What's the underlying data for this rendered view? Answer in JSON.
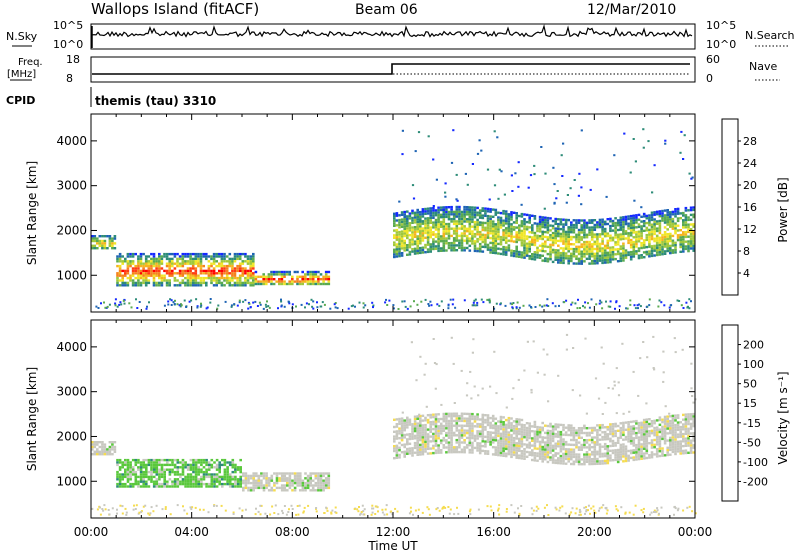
{
  "header": {
    "station": "Wallops Island (fitACF)",
    "beam": "Beam 06",
    "date": "12/Mar/2010"
  },
  "top_panels": {
    "nsky_label": "N.Sky",
    "nsky_ticks": [
      "10^5",
      "10^0"
    ],
    "nsearch_label": "N.Search",
    "nsearch_ticks": [
      "10^5",
      "10^0"
    ],
    "freq_label": "Freq.",
    "freq_unit": "[MHz]",
    "freq_ticks": [
      "18",
      "8"
    ],
    "nave_label": "Nave",
    "nave_ticks": [
      "60",
      "0"
    ],
    "cpid_label": "CPID",
    "cpid_value": "themis (tau) 3310"
  },
  "chart_data": [
    {
      "type": "heatmap",
      "name": "power",
      "ylabel": "Slant Range [km]",
      "ylim": [
        180,
        4600
      ],
      "yticks": [
        1000,
        2000,
        3000,
        4000
      ],
      "xlim": [
        0,
        24
      ],
      "colorbar": {
        "label": "Power [dB]",
        "ticks": [
          "28",
          "24",
          "20",
          "16",
          "12",
          "8",
          "4"
        ],
        "colors": [
          "#1428ff",
          "#1e64b4",
          "#2d8c78",
          "#5aaa50",
          "#a0c83c",
          "#f0e628",
          "#f5b41e",
          "#f5821e",
          "#ff3c14",
          "#ff0000"
        ]
      },
      "features": [
        {
          "t0": 0.0,
          "t1": 1.0,
          "r0": 1600,
          "r1": 1900,
          "level": "mid"
        },
        {
          "t0": 1.0,
          "t1": 6.5,
          "r0": 800,
          "r1": 1500,
          "level": "high"
        },
        {
          "t0": 6.5,
          "t1": 9.5,
          "r0": 800,
          "r1": 1100,
          "level": "high"
        },
        {
          "t0": 12.0,
          "t1": 24.0,
          "r0": 1400,
          "r1": 2400,
          "level": "mid"
        }
      ]
    },
    {
      "type": "heatmap",
      "name": "velocity",
      "ylabel": "Slant Range [km]",
      "xlabel": "Time UT",
      "ylim": [
        180,
        4600
      ],
      "yticks": [
        1000,
        2000,
        3000,
        4000
      ],
      "xlim": [
        0,
        24
      ],
      "xticks": [
        "00:00",
        "04:00",
        "08:00",
        "12:00",
        "16:00",
        "20:00",
        "00:00"
      ],
      "colorbar": {
        "label": "Velocity [m s⁻¹]",
        "ticks": [
          "200",
          "100",
          "50",
          "15",
          "-15",
          "-50",
          "-100",
          "-200"
        ],
        "colors": [
          "#1e1eb4",
          "#1e3cc8",
          "#2d8c78",
          "#5ac83c",
          "#c8c8c0",
          "#f5dc50",
          "#f5a028",
          "#ff6414",
          "#ff0000"
        ]
      },
      "features": [
        {
          "t0": 0.0,
          "t1": 1.0,
          "r0": 1600,
          "r1": 1900,
          "level": "ground"
        },
        {
          "t0": 1.0,
          "t1": 6.0,
          "r0": 900,
          "r1": 1500,
          "level": "positive"
        },
        {
          "t0": 6.0,
          "t1": 9.5,
          "r0": 800,
          "r1": 1200,
          "level": "ground"
        },
        {
          "t0": 12.0,
          "t1": 24.0,
          "r0": 1500,
          "r1": 2400,
          "level": "ground"
        }
      ]
    }
  ]
}
